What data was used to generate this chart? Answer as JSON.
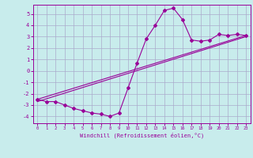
{
  "xlabel": "Windchill (Refroidissement éolien,°C)",
  "bg_color": "#c8ecec",
  "grid_color": "#aaaacc",
  "line_color": "#990099",
  "x_ticks": [
    0,
    1,
    2,
    3,
    4,
    5,
    6,
    7,
    8,
    9,
    10,
    11,
    12,
    13,
    14,
    15,
    16,
    17,
    18,
    19,
    20,
    21,
    22,
    23
  ],
  "y_ticks": [
    -4,
    -3,
    -2,
    -1,
    0,
    1,
    2,
    3,
    4,
    5
  ],
  "xlim": [
    -0.5,
    23.5
  ],
  "ylim": [
    -4.6,
    5.8
  ],
  "curve1_x": [
    0,
    1,
    2,
    3,
    4,
    5,
    6,
    7,
    8,
    9,
    10,
    11,
    12,
    13,
    14,
    15,
    16,
    17,
    18,
    19,
    20,
    21,
    22,
    23
  ],
  "curve1_y": [
    -2.5,
    -2.7,
    -2.7,
    -3.0,
    -3.3,
    -3.5,
    -3.7,
    -3.8,
    -4.0,
    -3.7,
    -1.5,
    0.7,
    2.8,
    4.0,
    5.3,
    5.5,
    4.5,
    2.7,
    2.6,
    2.7,
    3.2,
    3.1,
    3.2,
    3.1
  ],
  "line2_x": [
    0,
    23
  ],
  "line2_y": [
    -2.5,
    3.1
  ],
  "line3_x": [
    0,
    23
  ],
  "line3_y": [
    -2.7,
    3.0
  ]
}
